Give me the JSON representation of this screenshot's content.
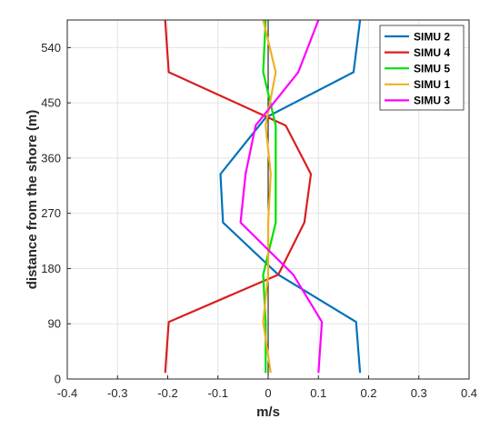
{
  "chart_data": {
    "type": "line",
    "title": "",
    "xlabel": "m/s",
    "ylabel": "distance from the shore (m)",
    "xlim": [
      -0.4,
      0.4
    ],
    "ylim": [
      0,
      585
    ],
    "xticks": [
      -0.4,
      -0.3,
      -0.2,
      -0.1,
      0,
      0.1,
      0.2,
      0.3,
      0.4
    ],
    "xtick_labels": [
      "-0.4",
      "-0.3",
      "-0.2",
      "-0.1",
      "0",
      "0.1",
      "0.2",
      "0.3",
      "0.4"
    ],
    "yticks": [
      0,
      90,
      180,
      270,
      360,
      450,
      540
    ],
    "ytick_labels": [
      "0",
      "90",
      "180",
      "270",
      "360",
      "450",
      "540"
    ],
    "grid": true,
    "legend_position": "top-right",
    "reference_line_x": 0,
    "series": [
      {
        "name": "SIMU 2",
        "color": "#0072bd",
        "x": [
          0.183,
          0.175,
          0.02,
          -0.09,
          -0.095,
          -0.005,
          0.17,
          0.183
        ],
        "y": [
          10,
          93,
          170,
          255,
          334,
          426,
          500,
          585
        ]
      },
      {
        "name": "SIMU 4",
        "color": "#d91e1e",
        "x": [
          -0.205,
          -0.198,
          0.02,
          0.072,
          0.085,
          0.035,
          -0.198,
          -0.205
        ],
        "y": [
          10,
          93,
          170,
          255,
          334,
          413,
          500,
          585
        ]
      },
      {
        "name": "SIMU 5",
        "color": "#00e000",
        "x": [
          -0.005,
          -0.005,
          -0.01,
          0.015,
          0.015,
          0.015,
          -0.01,
          -0.005
        ],
        "y": [
          10,
          93,
          170,
          255,
          334,
          413,
          500,
          585
        ]
      },
      {
        "name": "SIMU 1",
        "color": "#edb120",
        "x": [
          0.005,
          -0.01,
          0.0,
          0.0,
          0.005,
          -0.005,
          0.015,
          -0.01
        ],
        "y": [
          10,
          93,
          170,
          255,
          334,
          413,
          500,
          585
        ]
      },
      {
        "name": "SIMU 3",
        "color": "#ff00ff",
        "x": [
          0.1,
          0.107,
          0.05,
          -0.055,
          -0.045,
          -0.025,
          0.06,
          0.1
        ],
        "y": [
          10,
          93,
          170,
          255,
          334,
          413,
          500,
          585
        ]
      }
    ]
  }
}
